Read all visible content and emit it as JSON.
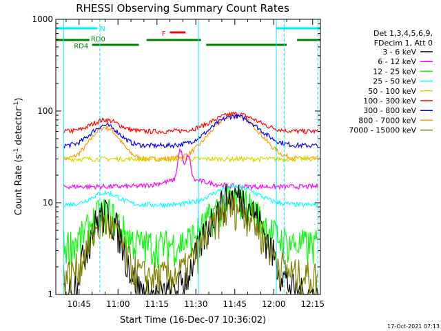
{
  "chart_data": {
    "type": "line",
    "title": "RHESSI Observing Summary Count Rates",
    "xlabel": "Start Time (16-Dec-07 10:36:02)",
    "ylabel": "Count Rate (s^-1 detector^-1)",
    "ylabel_main": "Count Rate (s",
    "ylabel_sup1": "-1",
    "ylabel_mid": " detector",
    "ylabel_sup2": "-1",
    "ylabel_end": ")",
    "y_scale": "log",
    "ylim": [
      1,
      1000
    ],
    "xlim_minutes": [
      36.03,
      138
    ],
    "x_ticks": [
      {
        "label": "10:45",
        "minute": 45
      },
      {
        "label": "11:00",
        "minute": 60
      },
      {
        "label": "11:15",
        "minute": 75
      },
      {
        "label": "11:30",
        "minute": 90
      },
      {
        "label": "11:45",
        "minute": 105
      },
      {
        "label": "12:00",
        "minute": 120
      },
      {
        "label": "12:15",
        "minute": 135
      }
    ],
    "y_ticks": [
      {
        "label": "1",
        "value": 1
      },
      {
        "label": "10",
        "value": 10
      },
      {
        "label": "100",
        "value": 100
      },
      {
        "label": "1000",
        "value": 1000
      }
    ],
    "legend": {
      "placement": "right",
      "header": [
        "Det 1,3,4,5,6,9,",
        "FDecim 1, Att 0"
      ],
      "entries": [
        {
          "name": "3 - 6 keV",
          "color": "#000000"
        },
        {
          "name": "6 - 12 keV",
          "color": "#ff00ff"
        },
        {
          "name": "12 - 25 keV",
          "color": "#00ff00"
        },
        {
          "name": "25 - 50 keV",
          "color": "#00ffff"
        },
        {
          "name": "50 - 100 keV",
          "color": "#d8d800"
        },
        {
          "name": "100 - 300 keV",
          "color": "#ff0000"
        },
        {
          "name": "300 - 800 keV",
          "color": "#0000ff"
        },
        {
          "name": "800 - 7000 keV",
          "color": "#ff9900"
        },
        {
          "name": "7000 - 15000 keV",
          "color": "#808000"
        }
      ]
    },
    "flag_bars": [
      {
        "label": "N",
        "color": "#00e5ff",
        "segments": [
          [
            36,
            52
          ],
          [
            121,
            138
          ]
        ],
        "level": 1
      },
      {
        "label": "F",
        "color": "#ff0000",
        "segments": [
          [
            80,
            86
          ]
        ],
        "level": 2
      },
      {
        "label": "RD0",
        "color": "#008000",
        "segments": [
          [
            36,
            49
          ],
          [
            71,
            92
          ],
          [
            129,
            138
          ]
        ],
        "level": 3
      },
      {
        "label": "RD4",
        "color": "#008000",
        "segments": [
          [
            50,
            68
          ],
          [
            94,
            125
          ]
        ],
        "level": 4
      }
    ],
    "vlines_minutes": {
      "solid": [
        39,
        91,
        121
      ],
      "dashed": [
        53,
        124,
        137
      ]
    },
    "series": [
      {
        "name": "800 - 7000 keV",
        "color": "#ff9900",
        "values": {
          "baseline": 30,
          "peak": 90,
          "peak_minute": 105
        }
      },
      {
        "name": "100 - 300 keV",
        "color": "#ff0000",
        "values": {
          "baseline": 60,
          "peak": 93,
          "peak_minute": 105
        }
      },
      {
        "name": "300 - 800 keV",
        "color": "#0000ff",
        "values": {
          "baseline": 42,
          "peak": 88,
          "peak_minute": 105
        }
      },
      {
        "name": "50 - 100 keV",
        "color": "#d8d800",
        "values": {
          "baseline": 30,
          "peak": 30,
          "peak_minute": 110
        }
      },
      {
        "name": "6 - 12 keV",
        "color": "#ff00ff",
        "values": {
          "baseline": 15,
          "peak": 35,
          "peak_minute": 86
        }
      },
      {
        "name": "25 - 50 keV",
        "color": "#00ffff",
        "values": {
          "baseline": 9.5,
          "peak": 15,
          "peak_minute": 105
        }
      },
      {
        "name": "12 - 25 keV",
        "color": "#00ff00",
        "values": {
          "baseline": 3.5,
          "peak": 11,
          "peak_minute": 105
        }
      },
      {
        "name": "3 - 6 keV",
        "color": "#000000",
        "values": {
          "baseline": 1,
          "peak": 12,
          "peak_minute": 105
        }
      },
      {
        "name": "7000 - 15000 keV",
        "color": "#808000",
        "values": {
          "baseline": 1.6,
          "peak": 9,
          "peak_minute": 105
        }
      }
    ]
  },
  "footer": {
    "timestamp": "17-Oct-2021 07:13"
  }
}
